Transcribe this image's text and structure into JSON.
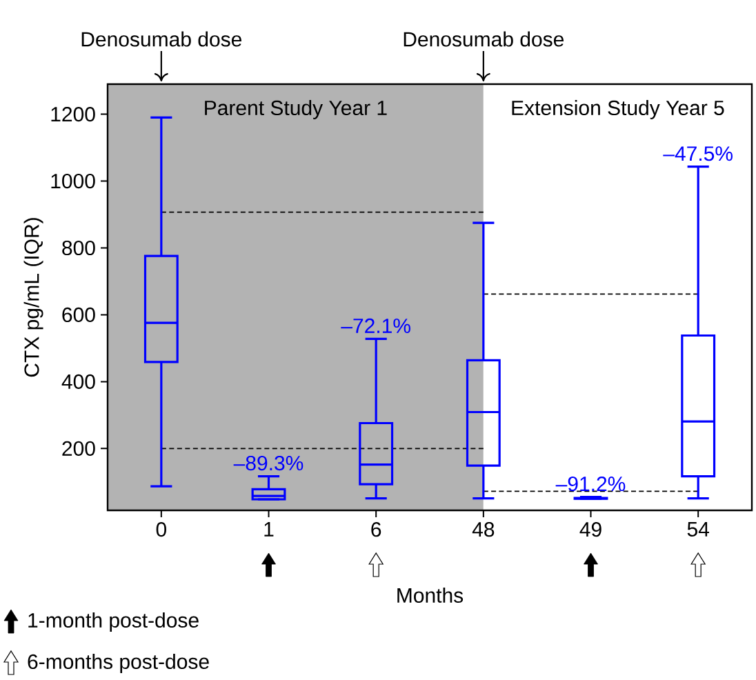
{
  "chart_data": {
    "type": "box",
    "xlabel": "Months",
    "ylabel": "CTX pg/mL (IQR)",
    "categories": [
      "0",
      "1",
      "6",
      "48",
      "49",
      "54"
    ],
    "color": "#0000ff",
    "boxes": [
      {
        "low": 87,
        "q1": 459,
        "median": 576,
        "q3": 776,
        "high": 1190
      },
      {
        "low": 48,
        "q1": 48,
        "median": 58,
        "q3": 78,
        "high": 117
      },
      {
        "low": 51,
        "q1": 93,
        "median": 152,
        "q3": 276,
        "high": 528
      },
      {
        "low": 51,
        "q1": 149,
        "median": 309,
        "q3": 464,
        "high": 875
      },
      {
        "low": 50,
        "q1": 50,
        "median": 51,
        "q3": 52,
        "high": 55
      },
      {
        "low": 51,
        "q1": 117,
        "median": 281,
        "q3": 538,
        "high": 1043
      }
    ],
    "series": [
      {
        "type": "line",
        "x": [
          "0",
          "48"
        ],
        "values": [
          907,
          907
        ],
        "color": "#000000",
        "line_style": "dashed"
      },
      {
        "type": "line",
        "x": [
          "0",
          "48"
        ],
        "values": [
          200,
          200
        ],
        "color": "#000000",
        "line_style": "dashed"
      },
      {
        "type": "line",
        "x": [
          "48",
          "54"
        ],
        "values": [
          662,
          662
        ],
        "color": "#000000",
        "line_style": "dashed"
      },
      {
        "type": "line",
        "x": [
          "48",
          "54"
        ],
        "values": [
          72,
          72
        ],
        "color": "#000000",
        "line_style": "dashed"
      }
    ],
    "bands": [
      {
        "axis": "x",
        "from": "0",
        "to": "48",
        "label": "Parent Study Year 1",
        "color": "#b3b3b3"
      },
      {
        "axis": "x",
        "from": "48",
        "to": "54",
        "label": "Extension Study Year 5",
        "color": "#ffffff"
      }
    ],
    "ylim": [
      15,
      1290
    ],
    "yticks": [
      200,
      400,
      600,
      800,
      1000,
      1200
    ],
    "annotations": [
      "Denosumab dose",
      "Denosumab dose",
      {
        "text": "–89.3%",
        "x": "1",
        "y": 117
      },
      {
        "text": "–72.1%",
        "x": "6",
        "y": 528
      },
      {
        "text": "–91.2%",
        "x": "49",
        "y": 55
      },
      {
        "text": "–47.5%",
        "x": "54",
        "y": 1043
      },
      "1-month post-dose",
      "6-months post-dose"
    ]
  }
}
